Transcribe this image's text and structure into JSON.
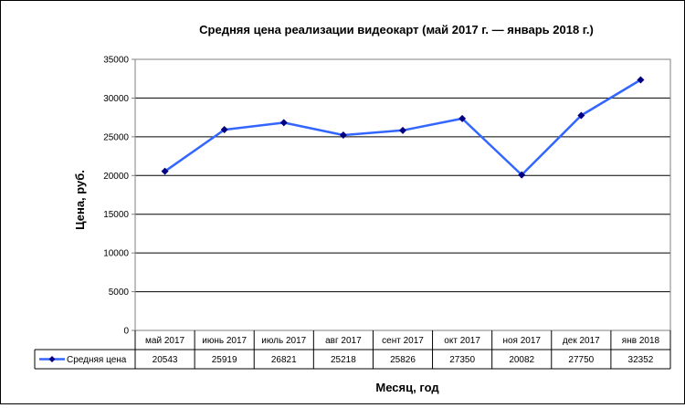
{
  "chart_data": {
    "type": "line",
    "title": "Средняя цена реализации видеокарт (май 2017 г. — январь 2018 г.)",
    "xlabel": "Месяц, год",
    "ylabel": "Цена, руб.",
    "ylim": [
      0,
      35000
    ],
    "yticks": [
      "0",
      "5000",
      "10000",
      "15000",
      "20000",
      "25000",
      "30000",
      "35000"
    ],
    "categories": [
      "май 2017",
      "июнь 2017",
      "июль 2017",
      "авг 2017",
      "сент 2017",
      "окт 2017",
      "ноя 2017",
      "дек 2017",
      "янв 2018"
    ],
    "series": [
      {
        "name": "Средняя цена",
        "values": [
          20543,
          25919,
          26821,
          25218,
          25826,
          27350,
          20082,
          27750,
          32352
        ],
        "value_labels": [
          "20543",
          "25919",
          "26821",
          "25218",
          "25826",
          "27350",
          "20082",
          "27750",
          "32352"
        ],
        "color": "#3366ff",
        "marker_color": "#000080"
      }
    ],
    "grid": true,
    "legend": "data-table",
    "data_table": true
  }
}
